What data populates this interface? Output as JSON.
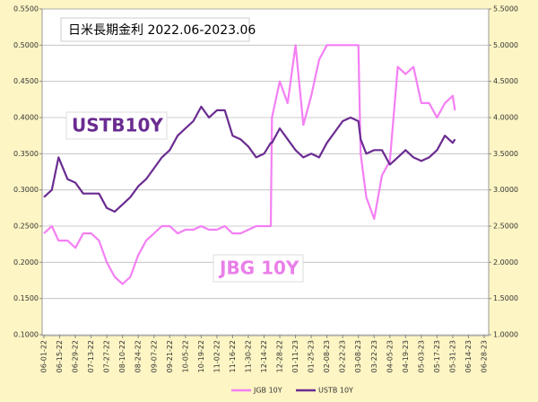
{
  "chart_data": {
    "type": "line",
    "title": "日米長期金利 2022.06-2023.06",
    "annotations": [
      "USTB10Y",
      "JBG 10Y"
    ],
    "x": [
      "2022-06-01",
      "2022-06-08",
      "2022-06-14",
      "2022-06-22",
      "2022-06-29",
      "2022-07-06",
      "2022-07-13",
      "2022-07-20",
      "2022-07-27",
      "2022-08-03",
      "2022-08-10",
      "2022-08-17",
      "2022-08-24",
      "2022-08-31",
      "2022-09-07",
      "2022-09-14",
      "2022-09-21",
      "2022-09-28",
      "2022-10-05",
      "2022-10-12",
      "2022-10-19",
      "2022-10-26",
      "2022-11-02",
      "2022-11-09",
      "2022-11-16",
      "2022-11-23",
      "2022-11-30",
      "2022-12-07",
      "2022-12-14",
      "2022-12-20",
      "2022-12-21",
      "2022-12-28",
      "2023-01-04",
      "2023-01-11",
      "2023-01-18",
      "2023-01-25",
      "2023-02-01",
      "2023-02-08",
      "2023-02-15",
      "2023-02-22",
      "2023-03-01",
      "2023-03-08",
      "2023-03-10",
      "2023-03-15",
      "2023-03-22",
      "2023-03-29",
      "2023-04-05",
      "2023-04-12",
      "2023-04-19",
      "2023-04-26",
      "2023-05-03",
      "2023-05-10",
      "2023-05-17",
      "2023-05-24",
      "2023-05-31",
      "2023-06-02"
    ],
    "series": [
      {
        "name": "JGB 10Y",
        "color": "#f47ff4",
        "values": [
          0.24,
          0.25,
          0.23,
          0.23,
          0.22,
          0.24,
          0.24,
          0.23,
          0.2,
          0.18,
          0.17,
          0.18,
          0.21,
          0.23,
          0.24,
          0.25,
          0.25,
          0.24,
          0.245,
          0.245,
          0.25,
          0.245,
          0.245,
          0.25,
          0.24,
          0.24,
          0.245,
          0.25,
          0.25,
          0.25,
          0.4,
          0.45,
          0.42,
          0.5,
          0.39,
          0.43,
          0.48,
          0.5,
          0.5,
          0.5,
          0.5,
          0.5,
          0.35,
          0.29,
          0.26,
          0.32,
          0.34,
          0.47,
          0.46,
          0.47,
          0.42,
          0.42,
          0.4,
          0.42,
          0.43,
          0.41
        ]
      },
      {
        "name": "USTB 10Y",
        "color": "#6a2c91",
        "axis": "y2",
        "values": [
          2.9,
          3.0,
          3.45,
          3.15,
          3.1,
          2.95,
          2.95,
          2.95,
          2.75,
          2.7,
          2.8,
          2.9,
          3.05,
          3.15,
          3.3,
          3.45,
          3.55,
          3.75,
          3.85,
          3.95,
          4.15,
          4.0,
          4.1,
          4.1,
          3.75,
          3.7,
          3.6,
          3.45,
          3.5,
          3.65,
          3.65,
          3.85,
          3.7,
          3.55,
          3.45,
          3.5,
          3.45,
          3.65,
          3.8,
          3.95,
          4.0,
          3.95,
          3.7,
          3.5,
          3.55,
          3.55,
          3.35,
          3.45,
          3.55,
          3.45,
          3.4,
          3.45,
          3.55,
          3.75,
          3.65,
          3.7
        ]
      }
    ],
    "xlim": [
      "2022-06-01",
      "2023-06-28"
    ],
    "xticks": [
      {
        "value": "2022-06-01",
        "label": "06-01-22"
      },
      {
        "value": "2022-06-15",
        "label": "06-15-22"
      },
      {
        "value": "2022-06-29",
        "label": "06-29-22"
      },
      {
        "value": "2022-07-13",
        "label": "07-13-22"
      },
      {
        "value": "2022-07-27",
        "label": "07-27-22"
      },
      {
        "value": "2022-08-10",
        "label": "08-10-22"
      },
      {
        "value": "2022-08-24",
        "label": "08-24-22"
      },
      {
        "value": "2022-09-07",
        "label": "09-07-22"
      },
      {
        "value": "2022-09-21",
        "label": "09-21-22"
      },
      {
        "value": "2022-10-05",
        "label": "10-05-22"
      },
      {
        "value": "2022-10-19",
        "label": "10-19-22"
      },
      {
        "value": "2022-11-02",
        "label": "11-02-22"
      },
      {
        "value": "2022-11-16",
        "label": "11-16-22"
      },
      {
        "value": "2022-11-30",
        "label": "11-30-22"
      },
      {
        "value": "2022-12-14",
        "label": "12-14-22"
      },
      {
        "value": "2022-12-28",
        "label": "12-28-22"
      },
      {
        "value": "2023-01-11",
        "label": "01-11-23"
      },
      {
        "value": "2023-01-25",
        "label": "01-25-23"
      },
      {
        "value": "2023-02-08",
        "label": "02-08-23"
      },
      {
        "value": "2023-02-22",
        "label": "02-22-23"
      },
      {
        "value": "2023-03-08",
        "label": "03-08-23"
      },
      {
        "value": "2023-03-22",
        "label": "03-22-23"
      },
      {
        "value": "2023-04-05",
        "label": "04-05-23"
      },
      {
        "value": "2023-04-19",
        "label": "04-19-23"
      },
      {
        "value": "2023-05-03",
        "label": "05-03-23"
      },
      {
        "value": "2023-05-17",
        "label": "05-17-23"
      },
      {
        "value": "2023-05-31",
        "label": "05-31-23"
      },
      {
        "value": "2023-06-14",
        "label": "06-14-23"
      },
      {
        "value": "2023-06-28",
        "label": "06-28-23"
      }
    ],
    "ylim": [
      0.1,
      0.55
    ],
    "yticks": [
      {
        "value": 0.1,
        "label": "0.1000"
      },
      {
        "value": 0.15,
        "label": "0.1500"
      },
      {
        "value": 0.2,
        "label": "0.2000"
      },
      {
        "value": 0.25,
        "label": "0.2500"
      },
      {
        "value": 0.3,
        "label": "0.3000"
      },
      {
        "value": 0.35,
        "label": "0.3500"
      },
      {
        "value": 0.4,
        "label": "0.4000"
      },
      {
        "value": 0.45,
        "label": "0.4500"
      },
      {
        "value": 0.5,
        "label": "0.5000"
      },
      {
        "value": 0.55,
        "label": "0.5500"
      }
    ],
    "y2lim": [
      1,
      5.5
    ],
    "y2ticks": [
      {
        "value": 1,
        "label": "1.0000"
      },
      {
        "value": 1.5,
        "label": "1.5000"
      },
      {
        "value": 2,
        "label": "2.0000"
      },
      {
        "value": 2.5,
        "label": "2.5000"
      },
      {
        "value": 3,
        "label": "3.0000"
      },
      {
        "value": 3.5,
        "label": "3.5000"
      },
      {
        "value": 4,
        "label": "4.0000"
      },
      {
        "value": 4.5,
        "label": "4.5000"
      },
      {
        "value": 5,
        "label": "5.0000"
      },
      {
        "value": 5.5,
        "label": "5.5000"
      }
    ],
    "grid": true,
    "legend": "bottom"
  }
}
